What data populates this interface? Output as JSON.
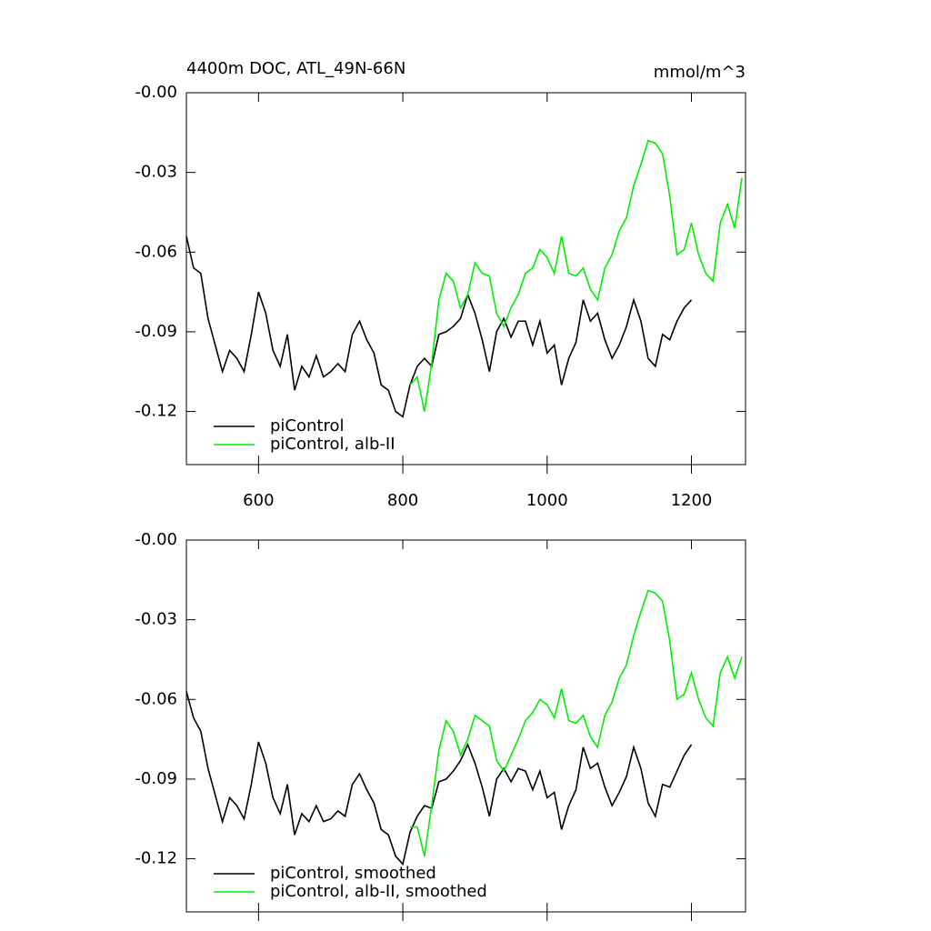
{
  "chart_data": [
    {
      "type": "line",
      "title": "4400m DOC, ATL_49N-66N",
      "units": "mmol/m^3",
      "xlim": [
        500,
        1275
      ],
      "xticks": [
        600,
        800,
        1000,
        1200
      ],
      "ylim": [
        -0.14,
        0
      ],
      "yticks": [
        {
          "value": 0,
          "label": "-0.00"
        },
        -0.03,
        -0.06,
        -0.09,
        -0.12
      ],
      "legend": "lower left",
      "series": [
        {
          "name": "piControl",
          "color": "#000000",
          "x": [
            500,
            510,
            520,
            530,
            540,
            550,
            560,
            570,
            580,
            590,
            600,
            610,
            620,
            630,
            640,
            650,
            660,
            670,
            680,
            690,
            700,
            710,
            720,
            730,
            740,
            750,
            760,
            770,
            780,
            790,
            800,
            810,
            820,
            830,
            840,
            850,
            860,
            870,
            880,
            890,
            900,
            910,
            920,
            930,
            940,
            950,
            960,
            970,
            980,
            990,
            1000,
            1010,
            1020,
            1030,
            1040,
            1050,
            1060,
            1070,
            1080,
            1090,
            1100,
            1110,
            1120,
            1130,
            1140,
            1150,
            1160,
            1170,
            1180,
            1190,
            1200
          ],
          "values": [
            -0.054,
            -0.066,
            -0.068,
            -0.085,
            -0.095,
            -0.105,
            -0.097,
            -0.1,
            -0.105,
            -0.091,
            -0.075,
            -0.083,
            -0.097,
            -0.103,
            -0.091,
            -0.112,
            -0.103,
            -0.107,
            -0.099,
            -0.107,
            -0.105,
            -0.102,
            -0.105,
            -0.091,
            -0.086,
            -0.093,
            -0.098,
            -0.11,
            -0.112,
            -0.12,
            -0.122,
            -0.11,
            -0.103,
            -0.1,
            -0.103,
            -0.091,
            -0.09,
            -0.088,
            -0.085,
            -0.076,
            -0.083,
            -0.093,
            -0.105,
            -0.09,
            -0.085,
            -0.092,
            -0.086,
            -0.086,
            -0.095,
            -0.086,
            -0.098,
            -0.095,
            -0.11,
            -0.1,
            -0.094,
            -0.078,
            -0.086,
            -0.083,
            -0.093,
            -0.1,
            -0.095,
            -0.088,
            -0.078,
            -0.086,
            -0.1,
            -0.103,
            -0.091,
            -0.093,
            -0.086,
            -0.081,
            -0.078
          ]
        },
        {
          "name": "piControl, alb-II",
          "color": "#00ee00",
          "x": [
            810,
            820,
            830,
            840,
            850,
            860,
            870,
            880,
            890,
            900,
            910,
            920,
            930,
            940,
            950,
            960,
            970,
            980,
            990,
            1000,
            1010,
            1020,
            1030,
            1040,
            1050,
            1060,
            1070,
            1080,
            1090,
            1100,
            1110,
            1120,
            1130,
            1140,
            1150,
            1160,
            1170,
            1180,
            1190,
            1200,
            1210,
            1220,
            1230,
            1240,
            1250,
            1260,
            1270
          ],
          "values": [
            -0.11,
            -0.107,
            -0.12,
            -0.102,
            -0.078,
            -0.068,
            -0.071,
            -0.081,
            -0.076,
            -0.064,
            -0.068,
            -0.069,
            -0.083,
            -0.088,
            -0.081,
            -0.076,
            -0.068,
            -0.066,
            -0.059,
            -0.062,
            -0.068,
            -0.054,
            -0.068,
            -0.069,
            -0.066,
            -0.074,
            -0.078,
            -0.066,
            -0.061,
            -0.052,
            -0.047,
            -0.035,
            -0.027,
            -0.018,
            -0.019,
            -0.023,
            -0.039,
            -0.061,
            -0.059,
            -0.049,
            -0.061,
            -0.068,
            -0.071,
            -0.049,
            -0.042,
            -0.051,
            -0.032
          ]
        }
      ]
    },
    {
      "type": "line",
      "xlim": [
        500,
        1275
      ],
      "xticks": [
        600,
        800,
        1000,
        1200
      ],
      "ylim": [
        -0.14,
        0
      ],
      "yticks": [
        {
          "value": 0,
          "label": "-0.00"
        },
        -0.03,
        -0.06,
        -0.09,
        -0.12
      ],
      "legend": "lower left",
      "series": [
        {
          "name": "piControl, smoothed",
          "color": "#000000",
          "x": [
            500,
            510,
            520,
            530,
            540,
            550,
            560,
            570,
            580,
            590,
            600,
            610,
            620,
            630,
            640,
            650,
            660,
            670,
            680,
            690,
            700,
            710,
            720,
            730,
            740,
            750,
            760,
            770,
            780,
            790,
            800,
            810,
            820,
            830,
            840,
            850,
            860,
            870,
            880,
            890,
            900,
            910,
            920,
            930,
            940,
            950,
            960,
            970,
            980,
            990,
            1000,
            1010,
            1020,
            1030,
            1040,
            1050,
            1060,
            1070,
            1080,
            1090,
            1100,
            1110,
            1120,
            1130,
            1140,
            1150,
            1160,
            1170,
            1180,
            1190,
            1200
          ],
          "values": [
            -0.057,
            -0.067,
            -0.072,
            -0.086,
            -0.096,
            -0.106,
            -0.097,
            -0.1,
            -0.105,
            -0.092,
            -0.076,
            -0.084,
            -0.097,
            -0.103,
            -0.092,
            -0.111,
            -0.103,
            -0.106,
            -0.1,
            -0.106,
            -0.105,
            -0.102,
            -0.104,
            -0.092,
            -0.088,
            -0.094,
            -0.099,
            -0.109,
            -0.111,
            -0.119,
            -0.122,
            -0.11,
            -0.104,
            -0.1,
            -0.101,
            -0.091,
            -0.09,
            -0.087,
            -0.083,
            -0.077,
            -0.084,
            -0.093,
            -0.104,
            -0.09,
            -0.086,
            -0.091,
            -0.086,
            -0.087,
            -0.094,
            -0.087,
            -0.097,
            -0.095,
            -0.109,
            -0.1,
            -0.094,
            -0.078,
            -0.086,
            -0.084,
            -0.093,
            -0.1,
            -0.095,
            -0.089,
            -0.078,
            -0.086,
            -0.099,
            -0.104,
            -0.092,
            -0.093,
            -0.087,
            -0.081,
            -0.077
          ]
        },
        {
          "name": "piControl, alb-II, smoothed",
          "color": "#00ee00",
          "x": [
            810,
            820,
            830,
            840,
            850,
            860,
            870,
            880,
            890,
            900,
            910,
            920,
            930,
            940,
            950,
            960,
            970,
            980,
            990,
            1000,
            1010,
            1020,
            1030,
            1040,
            1050,
            1060,
            1070,
            1080,
            1090,
            1100,
            1110,
            1120,
            1130,
            1140,
            1150,
            1160,
            1170,
            1180,
            1190,
            1200,
            1210,
            1220,
            1230,
            1240,
            1250,
            1260,
            1270
          ],
          "values": [
            -0.108,
            -0.108,
            -0.119,
            -0.1,
            -0.079,
            -0.068,
            -0.072,
            -0.081,
            -0.075,
            -0.066,
            -0.068,
            -0.07,
            -0.083,
            -0.087,
            -0.081,
            -0.075,
            -0.068,
            -0.065,
            -0.06,
            -0.062,
            -0.067,
            -0.056,
            -0.068,
            -0.069,
            -0.066,
            -0.074,
            -0.078,
            -0.066,
            -0.061,
            -0.052,
            -0.047,
            -0.036,
            -0.027,
            -0.019,
            -0.02,
            -0.023,
            -0.038,
            -0.06,
            -0.058,
            -0.05,
            -0.06,
            -0.067,
            -0.07,
            -0.05,
            -0.044,
            -0.052,
            -0.044
          ]
        }
      ]
    }
  ]
}
